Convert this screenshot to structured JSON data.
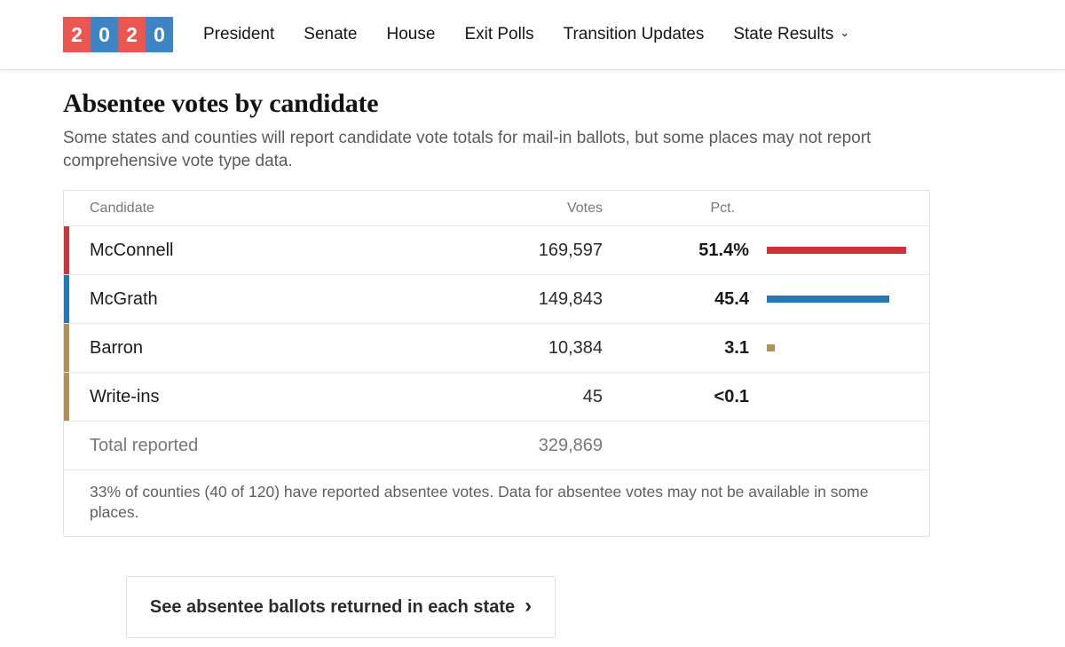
{
  "nav": {
    "logo": {
      "boxes": [
        {
          "digit": "2",
          "color": "#ec5550"
        },
        {
          "digit": "0",
          "color": "#3e85c6"
        },
        {
          "digit": "2",
          "color": "#ec5550"
        },
        {
          "digit": "0",
          "color": "#3e85c6"
        }
      ]
    },
    "items": [
      {
        "label": "President"
      },
      {
        "label": "Senate"
      },
      {
        "label": "House"
      },
      {
        "label": "Exit Polls"
      },
      {
        "label": "Transition Updates"
      },
      {
        "label": "State Results",
        "has_dropdown": true
      }
    ],
    "dropdown_chevron": "⌄"
  },
  "section": {
    "title": "Absentee votes by candidate",
    "subtitle": "Some states and counties will report candidate vote totals for mail-in ballots, but some places may not report comprehensive vote type data."
  },
  "table": {
    "columns": {
      "candidate": "Candidate",
      "votes": "Votes",
      "pct": "Pct."
    },
    "rows": [
      {
        "candidate": "McConnell",
        "votes": "169,597",
        "pct_label": "51.4%",
        "pct_value": 51.4,
        "color": "#cc343a"
      },
      {
        "candidate": "McGrath",
        "votes": "149,843",
        "pct_label": "45.4",
        "pct_value": 45.4,
        "color": "#2279b5"
      },
      {
        "candidate": "Barron",
        "votes": "10,384",
        "pct_label": "3.1",
        "pct_value": 3.1,
        "color": "#b3905a"
      },
      {
        "candidate": "Write-ins",
        "votes": "45",
        "pct_label": "<0.1",
        "pct_value": 0,
        "color": "#b3905a"
      }
    ],
    "total": {
      "label": "Total reported",
      "votes": "329,869"
    },
    "footnote": "33% of counties (40 of 120) have reported absentee votes. Data for absentee votes may not be available in some places."
  },
  "cta": {
    "label": "See absentee ballots returned in each state",
    "chevron": "›"
  }
}
